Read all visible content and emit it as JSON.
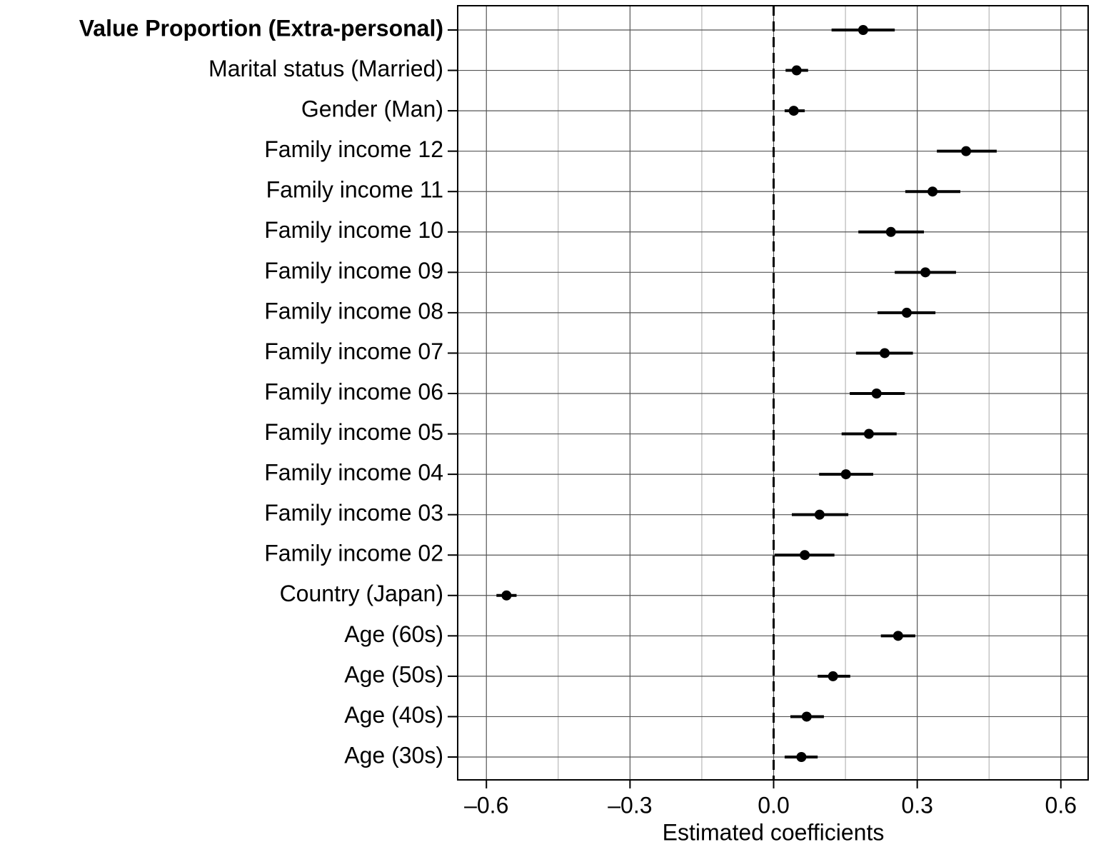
{
  "chart_data": {
    "type": "errorbar",
    "orientation": "horizontal",
    "x_label": "Estimated coefficients",
    "categories": [
      "Value Proportion (Extra-personal)",
      "Marital status (Married)",
      "Gender (Man)",
      "Family income 12",
      "Family income 11",
      "Family income 10",
      "Family income 09",
      "Family income 08",
      "Family income 07",
      "Family income 06",
      "Family income 05",
      "Family income 04",
      "Family income 03",
      "Family income 02",
      "Country (Japan)",
      "Age (60s)",
      "Age (50s)",
      "Age (40s)",
      "Age (30s)"
    ],
    "bold_categories": [
      0
    ],
    "series": [
      {
        "color": "#000000",
        "values": [
          0.187,
          0.048,
          0.042,
          0.402,
          0.332,
          0.245,
          0.317,
          0.278,
          0.232,
          0.215,
          0.199,
          0.151,
          0.096,
          0.065,
          -0.558,
          0.26,
          0.124,
          0.069,
          0.058
        ],
        "low": [
          0.121,
          0.025,
          0.023,
          0.341,
          0.275,
          0.177,
          0.253,
          0.217,
          0.172,
          0.159,
          0.142,
          0.095,
          0.038,
          0.002,
          -0.579,
          0.224,
          0.092,
          0.035,
          0.023
        ],
        "high": [
          0.253,
          0.072,
          0.065,
          0.466,
          0.39,
          0.314,
          0.381,
          0.338,
          0.291,
          0.274,
          0.257,
          0.208,
          0.156,
          0.127,
          -0.537,
          0.296,
          0.16,
          0.105,
          0.092
        ]
      }
    ],
    "xlim": [
      -0.66,
      0.657
    ],
    "xticks": [
      {
        "value": -0.6,
        "label": "–0.6"
      },
      {
        "value": -0.3,
        "label": "–0.3"
      },
      {
        "value": 0,
        "label": "0.0"
      },
      0.3,
      0.6
    ],
    "minor_xticks": [
      -0.45,
      -0.15,
      0.15,
      0.45
    ],
    "reference_line": 0,
    "grid": true
  }
}
